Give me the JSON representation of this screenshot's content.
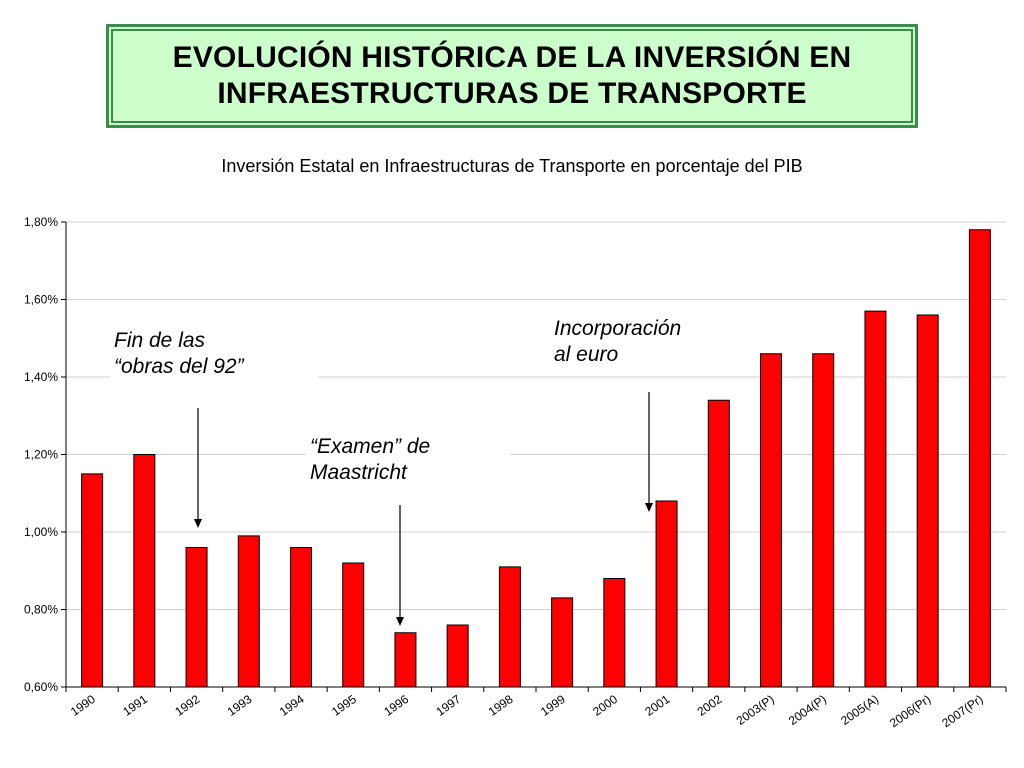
{
  "header": {
    "title_line1": "EVOLUCIÓN HISTÓRICA DE LA INVERSIÓN EN",
    "title_line2": "INFRAESTRUCTURAS DE TRANSPORTE"
  },
  "annotations": {
    "obras92_line1": "Fin de las",
    "obras92_line2": "“obras del 92”",
    "maastricht_line1": "“Examen” de",
    "maastricht_line2": "Maastricht",
    "euro_line1": "Incorporación",
    "euro_line2": "al euro"
  },
  "colors": {
    "bar": "#ff0000",
    "bar_edge": "#000000",
    "grid": "#d0d0d0",
    "title_bg": "#ccffcc",
    "title_border": "#3a8c4d"
  },
  "chart_data": {
    "type": "bar",
    "title": "Inversión Estatal en Infraestructuras de Transporte en porcentaje del PIB",
    "xlabel": "",
    "ylabel": "",
    "categories": [
      "1990",
      "1991",
      "1992",
      "1993",
      "1994",
      "1995",
      "1996",
      "1997",
      "1998",
      "1999",
      "2000",
      "2001",
      "2002",
      "2003(P)",
      "2004(P)",
      "2005(A)",
      "2006(Pr)",
      "2007(Pr)"
    ],
    "values": [
      1.15,
      1.2,
      0.96,
      0.99,
      0.96,
      0.92,
      0.74,
      0.76,
      0.91,
      0.83,
      0.88,
      1.08,
      1.34,
      1.46,
      1.46,
      1.57,
      1.56,
      1.78
    ],
    "ylim": [
      0.6,
      1.8
    ],
    "yticks": [
      "0,60%",
      "0,80%",
      "1,00%",
      "1,20%",
      "1,40%",
      "1,60%",
      "1,80%"
    ],
    "ytick_values": [
      0.6,
      0.8,
      1.0,
      1.2,
      1.4,
      1.6,
      1.8
    ],
    "grid": true,
    "legend": "none"
  }
}
